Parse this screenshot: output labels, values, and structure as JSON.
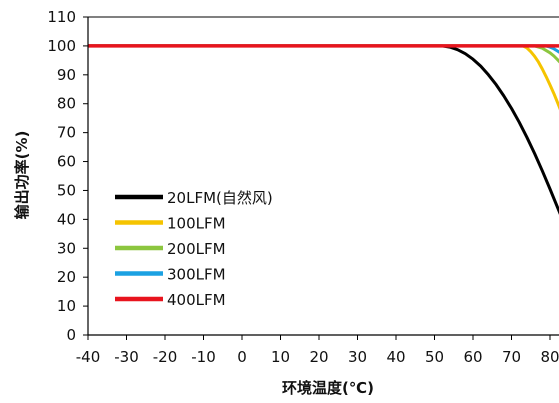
{
  "chart_data": {
    "type": "line",
    "title": "",
    "xlabel": "环境温度(℃)",
    "ylabel": "输出功率(%)",
    "xlim": [
      -40,
      85
    ],
    "ylim": [
      0,
      110
    ],
    "x_ticks": [
      -40,
      -30,
      -20,
      -10,
      0,
      10,
      20,
      30,
      40,
      50,
      60,
      70,
      80
    ],
    "y_ticks": [
      0,
      10,
      20,
      30,
      40,
      50,
      60,
      70,
      80,
      90,
      100,
      110
    ],
    "grid": "none",
    "legend_position": "bottom-left",
    "series": [
      {
        "name": "20LFM(自然风)",
        "color": "#000000",
        "x": [
          -40,
          52,
          54,
          56,
          58,
          60,
          62,
          64,
          66,
          68,
          70,
          72,
          74,
          76,
          78,
          80,
          82,
          84,
          85
        ],
        "y": [
          100,
          100,
          99.6,
          98.7,
          97.3,
          95.4,
          93,
          90,
          86.6,
          82.7,
          78.4,
          73.6,
          68.4,
          62.8,
          56.8,
          50.5,
          44,
          37.5,
          34
        ]
      },
      {
        "name": "100LFM",
        "color": "#f5c400",
        "x": [
          -40,
          73,
          74,
          75,
          76,
          77,
          78,
          79,
          80,
          81,
          82,
          83,
          84,
          85
        ],
        "y": [
          100,
          100,
          99.3,
          98,
          96.4,
          94.4,
          92,
          89.3,
          86.5,
          83.5,
          80.3,
          77,
          73.6,
          70
        ]
      },
      {
        "name": "200LFM",
        "color": "#8cc63f",
        "x": [
          -40,
          76,
          78,
          80,
          81,
          82,
          83,
          84,
          85
        ],
        "y": [
          100,
          100,
          99.2,
          97.6,
          96.5,
          95.2,
          93.8,
          92.3,
          90.7
        ]
      },
      {
        "name": "300LFM",
        "color": "#1ba1e2",
        "x": [
          -40,
          79,
          80,
          81,
          82,
          83,
          84,
          85
        ],
        "y": [
          100,
          100,
          99.6,
          99,
          98.2,
          97.3,
          96.3,
          95.2
        ]
      },
      {
        "name": "400LFM",
        "color": "#e8141e",
        "x": [
          -40,
          85
        ],
        "y": [
          100,
          100
        ]
      }
    ]
  }
}
